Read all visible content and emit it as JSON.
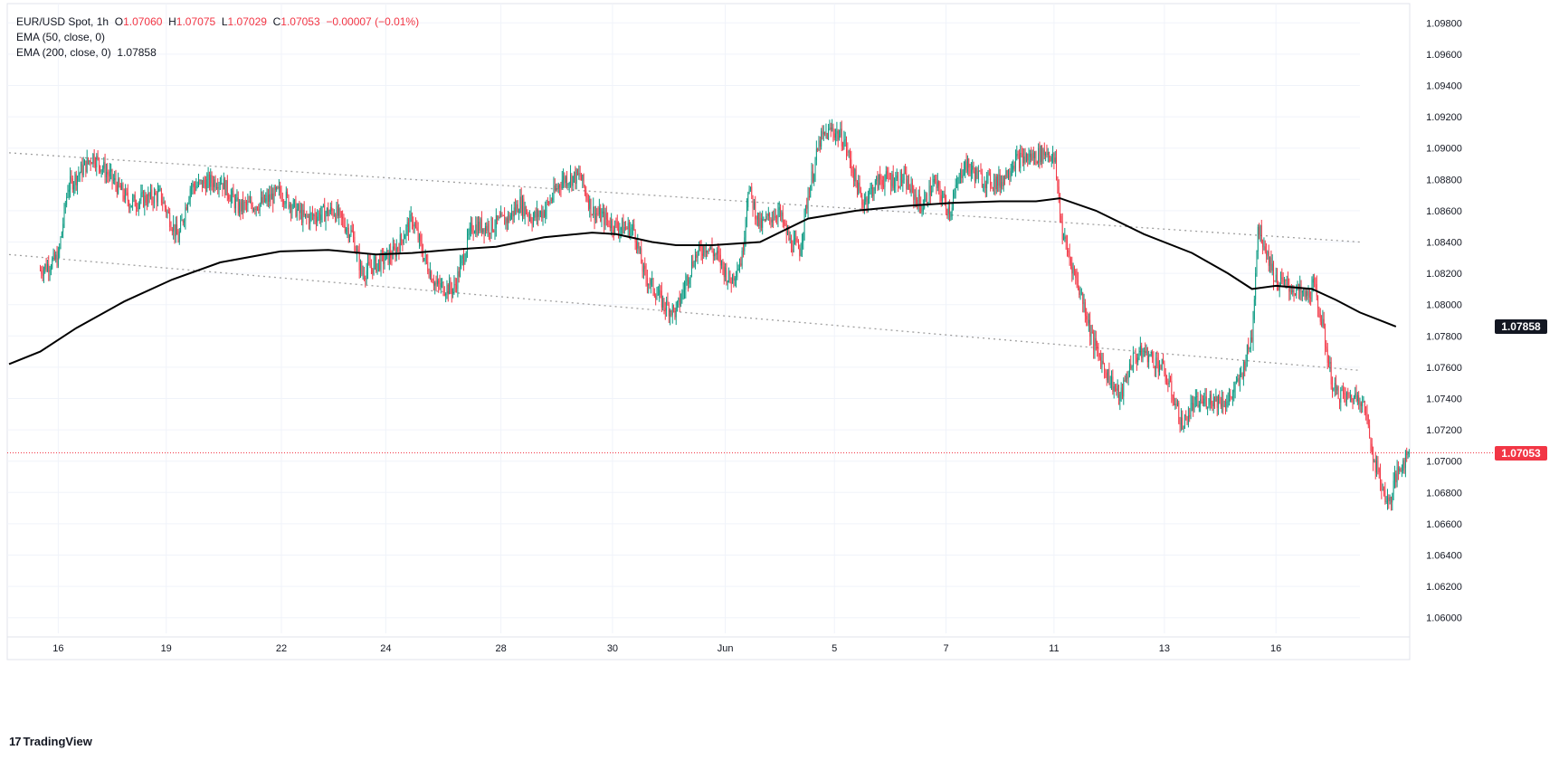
{
  "legend": {
    "symbol": "EUR/USD Spot, 1h",
    "o_label": "O",
    "o": "1.07060",
    "h_label": "H",
    "h": "1.07075",
    "l_label": "L",
    "l": "1.07029",
    "c_label": "C",
    "c": "1.07053",
    "change": "−0.00007 (−0.01%)",
    "ema50": "EMA (50, close, 0)",
    "ema200": "EMA (200, close, 0)",
    "ema200_value": "1.07858"
  },
  "brand": {
    "name": "TradingView",
    "icon": "tradingview-logo-icon"
  },
  "colors": {
    "up": "#089981",
    "down": "#f23645",
    "ema": "#000000",
    "channel": "#9e9e9e",
    "grid": "#f0f3fa"
  },
  "chart_data": {
    "type": "candlestick",
    "ylim": [
      1.059,
      1.099
    ],
    "y_ticks": [
      "1.06000",
      "1.06200",
      "1.06400",
      "1.06600",
      "1.06800",
      "1.07000",
      "1.07200",
      "1.07400",
      "1.07600",
      "1.07800",
      "1.08000",
      "1.08200",
      "1.08400",
      "1.08600",
      "1.08800",
      "1.09000",
      "1.09200",
      "1.09400",
      "1.09600",
      "1.09800"
    ],
    "x_ticks": [
      {
        "label": "16",
        "i": 15
      },
      {
        "label": "19",
        "i": 105
      },
      {
        "label": "22",
        "i": 201
      },
      {
        "label": "24",
        "i": 288
      },
      {
        "label": "28",
        "i": 384
      },
      {
        "label": "30",
        "i": 477
      },
      {
        "label": "Jun",
        "i": 571
      },
      {
        "label": "5",
        "i": 662
      },
      {
        "label": "7",
        "i": 755
      },
      {
        "label": "11",
        "i": 845
      },
      {
        "label": "13",
        "i": 937
      },
      {
        "label": "16",
        "i": 1030
      }
    ],
    "x_range": [
      -26,
      1100
    ],
    "price_path": [
      [
        0,
        1.0822
      ],
      [
        15,
        1.083
      ],
      [
        23,
        1.0875
      ],
      [
        44,
        1.0895
      ],
      [
        60,
        1.088
      ],
      [
        75,
        1.0865
      ],
      [
        100,
        1.087
      ],
      [
        115,
        1.0842
      ],
      [
        125,
        1.0875
      ],
      [
        150,
        1.088
      ],
      [
        165,
        1.0862
      ],
      [
        185,
        1.0865
      ],
      [
        200,
        1.0872
      ],
      [
        220,
        1.0855
      ],
      [
        245,
        1.086
      ],
      [
        260,
        1.0845
      ],
      [
        268,
        1.082
      ],
      [
        295,
        1.0833
      ],
      [
        310,
        1.0855
      ],
      [
        320,
        1.083
      ],
      [
        330,
        1.0812
      ],
      [
        345,
        1.081
      ],
      [
        360,
        1.085
      ],
      [
        375,
        1.085
      ],
      [
        390,
        1.0855
      ],
      [
        400,
        1.0865
      ],
      [
        410,
        1.0855
      ],
      [
        420,
        1.086
      ],
      [
        435,
        1.088
      ],
      [
        450,
        1.0882
      ],
      [
        460,
        1.086
      ],
      [
        480,
        1.085
      ],
      [
        495,
        1.0848
      ],
      [
        503,
        1.082
      ],
      [
        520,
        1.08
      ],
      [
        530,
        1.0795
      ],
      [
        545,
        1.083
      ],
      [
        555,
        1.0838
      ],
      [
        565,
        1.083
      ],
      [
        575,
        1.0815
      ],
      [
        585,
        1.083
      ],
      [
        590,
        1.0875
      ],
      [
        600,
        1.085
      ],
      [
        615,
        1.086
      ],
      [
        625,
        1.084
      ],
      [
        633,
        1.0835
      ],
      [
        640,
        1.087
      ],
      [
        650,
        1.0905
      ],
      [
        660,
        1.0912
      ],
      [
        670,
        1.0905
      ],
      [
        685,
        1.0865
      ],
      [
        700,
        1.088
      ],
      [
        720,
        1.088
      ],
      [
        735,
        1.0862
      ],
      [
        745,
        1.0878
      ],
      [
        758,
        1.086
      ],
      [
        770,
        1.089
      ],
      [
        785,
        1.088
      ],
      [
        800,
        1.0878
      ],
      [
        812,
        1.0892
      ],
      [
        830,
        1.0895
      ],
      [
        840,
        1.0898
      ],
      [
        846,
        1.089
      ],
      [
        852,
        1.0845
      ],
      [
        862,
        1.082
      ],
      [
        870,
        1.08
      ],
      [
        878,
        1.0775
      ],
      [
        890,
        1.0755
      ],
      [
        900,
        1.074
      ],
      [
        910,
        1.0765
      ],
      [
        920,
        1.077
      ],
      [
        935,
        1.076
      ],
      [
        945,
        1.074
      ],
      [
        952,
        1.0722
      ],
      [
        960,
        1.0735
      ],
      [
        975,
        1.074
      ],
      [
        990,
        1.0738
      ],
      [
        1000,
        1.0752
      ],
      [
        1010,
        1.078
      ],
      [
        1015,
        1.085
      ],
      [
        1022,
        1.0835
      ],
      [
        1030,
        1.0815
      ],
      [
        1045,
        1.081
      ],
      [
        1055,
        1.0805
      ],
      [
        1062,
        1.0812
      ],
      [
        1068,
        1.079
      ],
      [
        1072,
        1.0772
      ],
      [
        1078,
        1.0745
      ],
      [
        1090,
        1.074
      ],
      [
        1100,
        1.0742
      ],
      [
        1105,
        1.073
      ],
      [
        1112,
        1.07
      ],
      [
        1118,
        1.0685
      ],
      [
        1124,
        1.0672
      ],
      [
        1130,
        1.069
      ],
      [
        1136,
        1.07
      ],
      [
        1141,
        1.0705
      ]
    ],
    "ema200_path": [
      [
        -26,
        1.0762
      ],
      [
        0,
        1.077
      ],
      [
        30,
        1.0785
      ],
      [
        70,
        1.0802
      ],
      [
        110,
        1.0816
      ],
      [
        150,
        1.0827
      ],
      [
        200,
        1.0834
      ],
      [
        240,
        1.0835
      ],
      [
        280,
        1.0832
      ],
      [
        310,
        1.0833
      ],
      [
        340,
        1.0835
      ],
      [
        380,
        1.0837
      ],
      [
        420,
        1.0843
      ],
      [
        460,
        1.0846
      ],
      [
        480,
        1.0845
      ],
      [
        510,
        1.084
      ],
      [
        530,
        1.0838
      ],
      [
        560,
        1.0838
      ],
      [
        600,
        1.084
      ],
      [
        640,
        1.0855
      ],
      [
        680,
        1.086
      ],
      [
        720,
        1.0863
      ],
      [
        760,
        1.0865
      ],
      [
        800,
        1.0866
      ],
      [
        830,
        1.0866
      ],
      [
        850,
        1.0868
      ],
      [
        880,
        1.086
      ],
      [
        920,
        1.0845
      ],
      [
        960,
        1.0833
      ],
      [
        990,
        1.082
      ],
      [
        1010,
        1.081
      ],
      [
        1030,
        1.0812
      ],
      [
        1060,
        1.081
      ],
      [
        1080,
        1.0803
      ],
      [
        1100,
        1.0795
      ],
      [
        1130,
        1.0786
      ]
    ],
    "channel_upper": [
      [
        -26,
        1.0897
      ],
      [
        1100,
        1.084
      ]
    ],
    "channel_lower": [
      [
        -26,
        1.0832
      ],
      [
        1100,
        1.0758
      ]
    ],
    "last_price": 1.07053,
    "ema200_last": 1.07858,
    "price_labels": {
      "ema": "1.07858",
      "last": "1.07053"
    }
  }
}
